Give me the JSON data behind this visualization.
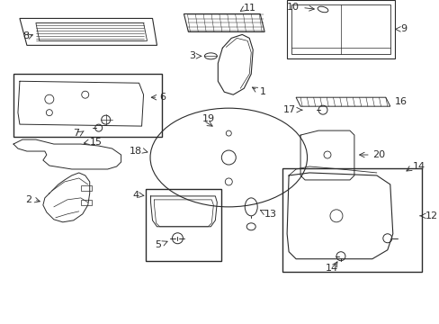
{
  "bg_color": "#ffffff",
  "line_color": "#2a2a2a",
  "fig_width": 4.89,
  "fig_height": 3.6,
  "dpi": 100
}
